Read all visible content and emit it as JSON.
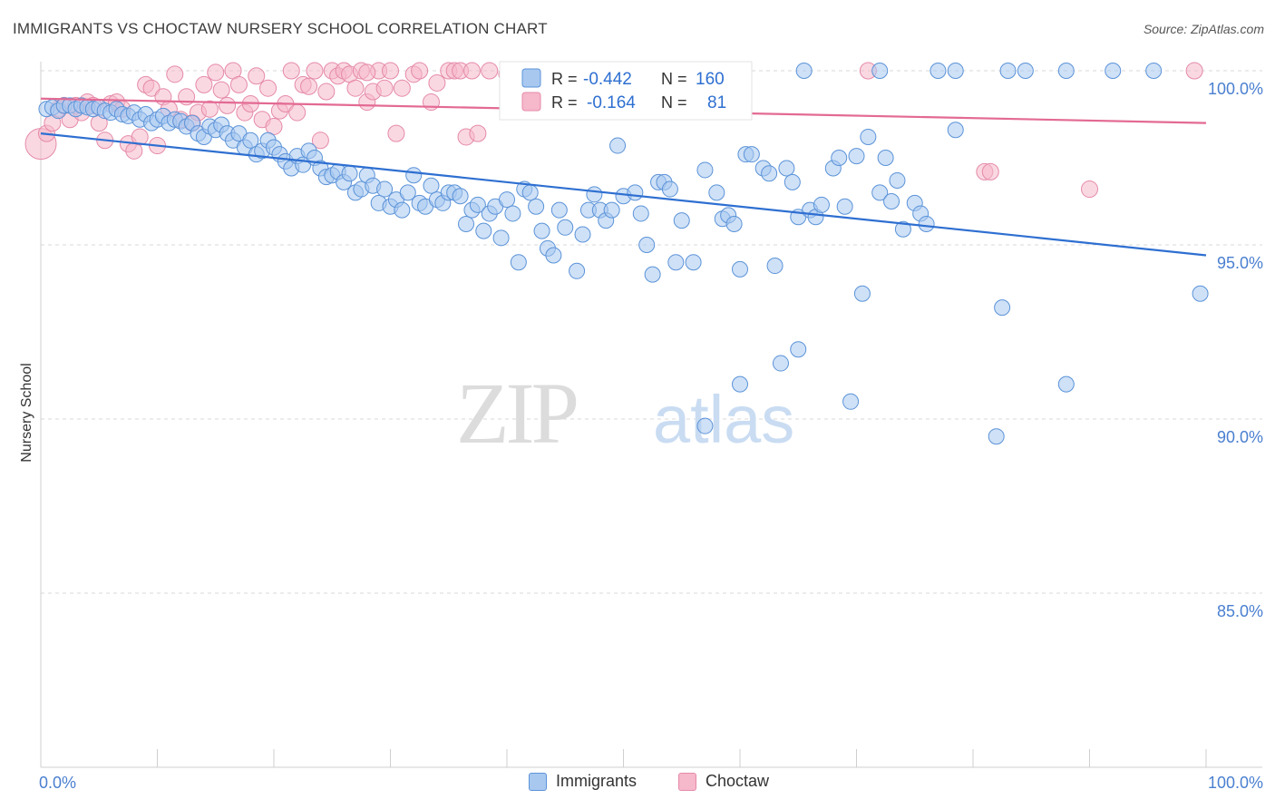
{
  "header": {
    "title": "IMMIGRANTS VS CHOCTAW NURSERY SCHOOL CORRELATION CHART",
    "source": "Source: ZipAtlas.com"
  },
  "watermark": {
    "zip": "ZIP",
    "atlas": "atlas"
  },
  "colors": {
    "blue_fill": "#a8c8f0",
    "blue_stroke": "#5b93d8",
    "blue_line": "#2e6fd1",
    "pink_fill": "#f6b8cb",
    "pink_stroke": "#e58aa8",
    "pink_line": "#e36a93",
    "axis_label": "#4a7fd0",
    "grid": "#d8d8d8"
  },
  "legend": {
    "rows": [
      {
        "r_label": "R =",
        "r_value": "-0.442",
        "n_label": "N =",
        "n_value": "160"
      },
      {
        "r_label": "R =",
        "r_value": "-0.164",
        "n_label": "N =",
        "n_value": "81"
      }
    ]
  },
  "bottom_legend": {
    "immigrants": "Immigrants",
    "choctaw": "Choctaw"
  },
  "chart_data": {
    "type": "scatter",
    "title": "IMMIGRANTS VS CHOCTAW NURSERY SCHOOL CORRELATION CHART",
    "xlabel": "",
    "ylabel": "Nursery School",
    "xlim": [
      0,
      100
    ],
    "ylim": [
      80.5,
      100.8
    ],
    "x_tick_labels": [
      "0.0%",
      "100.0%"
    ],
    "y_ticks": [
      85,
      90,
      95,
      100
    ],
    "y_tick_labels": [
      "85.0%",
      "90.0%",
      "95.0%",
      "100.0%"
    ],
    "series": [
      {
        "name": "Immigrants",
        "r": -0.442,
        "n": 160,
        "trend": {
          "x": [
            0,
            100
          ],
          "y": [
            98.2,
            94.7
          ]
        },
        "points": [
          [
            0.5,
            98.9
          ],
          [
            1,
            98.95
          ],
          [
            1.5,
            98.85
          ],
          [
            2,
            99
          ],
          [
            2.5,
            99
          ],
          [
            3,
            98.9
          ],
          [
            3.5,
            99
          ],
          [
            4,
            98.95
          ],
          [
            4.5,
            98.9
          ],
          [
            5,
            98.95
          ],
          [
            5.5,
            98.85
          ],
          [
            6,
            98.8
          ],
          [
            6.5,
            98.9
          ],
          [
            7,
            98.75
          ],
          [
            7.5,
            98.7
          ],
          [
            8,
            98.8
          ],
          [
            8.5,
            98.6
          ],
          [
            9,
            98.75
          ],
          [
            9.5,
            98.5
          ],
          [
            10,
            98.6
          ],
          [
            10.5,
            98.7
          ],
          [
            11,
            98.5
          ],
          [
            11.5,
            98.6
          ],
          [
            12,
            98.55
          ],
          [
            12.5,
            98.4
          ],
          [
            13,
            98.5
          ],
          [
            13.5,
            98.2
          ],
          [
            14,
            98.1
          ],
          [
            14.5,
            98.4
          ],
          [
            15,
            98.3
          ],
          [
            15.5,
            98.45
          ],
          [
            16,
            98.2
          ],
          [
            16.5,
            98
          ],
          [
            17,
            98.2
          ],
          [
            17.5,
            97.8
          ],
          [
            18,
            98
          ],
          [
            18.5,
            97.6
          ],
          [
            19,
            97.7
          ],
          [
            19.5,
            98
          ],
          [
            20,
            97.8
          ],
          [
            20.5,
            97.6
          ],
          [
            21,
            97.4
          ],
          [
            21.5,
            97.2
          ],
          [
            22,
            97.55
          ],
          [
            22.5,
            97.3
          ],
          [
            23,
            97.7
          ],
          [
            23.5,
            97.5
          ],
          [
            24,
            97.2
          ],
          [
            24.5,
            96.95
          ],
          [
            25,
            97
          ],
          [
            25.5,
            97.1
          ],
          [
            26,
            96.8
          ],
          [
            26.5,
            97.05
          ],
          [
            27,
            96.5
          ],
          [
            27.5,
            96.6
          ],
          [
            28,
            97
          ],
          [
            28.5,
            96.7
          ],
          [
            29,
            96.2
          ],
          [
            29.5,
            96.6
          ],
          [
            30,
            96.1
          ],
          [
            30.5,
            96.3
          ],
          [
            31,
            96
          ],
          [
            31.5,
            96.5
          ],
          [
            32,
            97
          ],
          [
            32.5,
            96.2
          ],
          [
            33,
            96.1
          ],
          [
            33.5,
            96.7
          ],
          [
            34,
            96.3
          ],
          [
            34.5,
            96.2
          ],
          [
            35,
            96.5
          ],
          [
            35.5,
            96.5
          ],
          [
            36,
            96.4
          ],
          [
            36.5,
            95.6
          ],
          [
            37,
            96
          ],
          [
            37.5,
            96.15
          ],
          [
            38,
            95.4
          ],
          [
            38.5,
            95.9
          ],
          [
            39,
            96.1
          ],
          [
            39.5,
            95.2
          ],
          [
            40,
            96.3
          ],
          [
            40.5,
            95.9
          ],
          [
            41,
            94.5
          ],
          [
            41.5,
            96.6
          ],
          [
            42,
            96.5
          ],
          [
            42.5,
            96.1
          ],
          [
            43,
            95.4
          ],
          [
            43.5,
            94.9
          ],
          [
            44,
            94.7
          ],
          [
            44.5,
            96
          ],
          [
            45,
            95.5
          ],
          [
            46,
            94.25
          ],
          [
            46.5,
            95.3
          ],
          [
            47,
            96
          ],
          [
            47.5,
            96.45
          ],
          [
            48,
            96
          ],
          [
            48.5,
            95.7
          ],
          [
            49,
            96
          ],
          [
            49.5,
            97.85
          ],
          [
            50,
            96.4
          ],
          [
            51,
            96.5
          ],
          [
            51.5,
            95.9
          ],
          [
            52,
            95
          ],
          [
            52.5,
            94.15
          ],
          [
            53,
            96.8
          ],
          [
            53.5,
            96.8
          ],
          [
            54,
            96.6
          ],
          [
            54.5,
            94.5
          ],
          [
            55,
            95.7
          ],
          [
            56,
            94.5
          ],
          [
            57,
            97.15
          ],
          [
            58,
            96.5
          ],
          [
            58.5,
            95.75
          ],
          [
            59,
            95.85
          ],
          [
            59.5,
            95.6
          ],
          [
            60,
            94.3
          ],
          [
            60.5,
            97.6
          ],
          [
            61,
            97.6
          ],
          [
            62,
            97.2
          ],
          [
            62.5,
            97.05
          ],
          [
            63,
            94.4
          ],
          [
            64,
            97.2
          ],
          [
            64.5,
            96.8
          ],
          [
            65,
            95.8
          ],
          [
            66,
            96
          ],
          [
            66.5,
            95.8
          ],
          [
            67,
            96.15
          ],
          [
            68,
            97.2
          ],
          [
            68.5,
            97.5
          ],
          [
            69,
            96.1
          ],
          [
            70,
            97.55
          ],
          [
            70.5,
            93.6
          ],
          [
            71,
            98.1
          ],
          [
            72,
            96.5
          ],
          [
            72.5,
            97.5
          ],
          [
            73,
            96.25
          ],
          [
            73.5,
            96.85
          ],
          [
            74,
            95.45
          ],
          [
            75,
            96.2
          ],
          [
            75.5,
            95.9
          ],
          [
            76,
            95.6
          ],
          [
            78.5,
            98.3
          ],
          [
            60,
            91
          ],
          [
            65,
            92
          ],
          [
            69.5,
            90.5
          ],
          [
            57,
            89.8
          ],
          [
            82,
            89.5
          ],
          [
            82.5,
            93.2
          ],
          [
            88,
            91
          ],
          [
            99.5,
            93.6
          ],
          [
            63.5,
            91.6
          ],
          [
            65.5,
            100
          ],
          [
            72,
            100
          ],
          [
            77,
            100
          ],
          [
            78.5,
            100
          ],
          [
            83,
            100
          ],
          [
            84.5,
            100
          ],
          [
            88,
            100
          ],
          [
            92,
            100
          ],
          [
            95.5,
            100
          ],
          [
            60,
            99.1
          ]
        ]
      },
      {
        "name": "Choctaw",
        "r": -0.164,
        "n": 81,
        "trend": {
          "x": [
            0,
            100
          ],
          "y": [
            99.2,
            98.5
          ]
        },
        "points": [
          [
            0,
            97.9
          ],
          [
            0.5,
            98.2
          ],
          [
            1,
            98.5
          ],
          [
            1.5,
            98.9
          ],
          [
            2,
            99
          ],
          [
            2.5,
            98.6
          ],
          [
            3,
            99
          ],
          [
            3.5,
            98.8
          ],
          [
            4,
            99.1
          ],
          [
            4.5,
            99
          ],
          [
            5,
            98.5
          ],
          [
            5.5,
            98
          ],
          [
            6,
            99.05
          ],
          [
            6.5,
            99.1
          ],
          [
            7,
            98.9
          ],
          [
            7.5,
            97.9
          ],
          [
            8,
            97.7
          ],
          [
            8.5,
            98.1
          ],
          [
            9,
            99.6
          ],
          [
            9.5,
            99.5
          ],
          [
            10,
            97.85
          ],
          [
            10.5,
            99.25
          ],
          [
            11,
            98.9
          ],
          [
            11.5,
            99.9
          ],
          [
            12,
            98.6
          ],
          [
            12.5,
            99.25
          ],
          [
            13,
            98.5
          ],
          [
            13.5,
            98.8
          ],
          [
            14,
            99.6
          ],
          [
            14.5,
            98.9
          ],
          [
            15,
            99.95
          ],
          [
            15.5,
            99.45
          ],
          [
            16,
            99
          ],
          [
            16.5,
            100
          ],
          [
            17,
            99.6
          ],
          [
            17.5,
            98.8
          ],
          [
            18,
            99.05
          ],
          [
            18.5,
            99.85
          ],
          [
            19,
            98.6
          ],
          [
            19.5,
            99.5
          ],
          [
            20,
            98.4
          ],
          [
            20.5,
            98.85
          ],
          [
            21,
            99.05
          ],
          [
            21.5,
            100
          ],
          [
            22,
            98.8
          ],
          [
            22.5,
            99.6
          ],
          [
            23,
            99.55
          ],
          [
            23.5,
            100
          ],
          [
            24,
            98
          ],
          [
            24.5,
            99.4
          ],
          [
            25,
            100
          ],
          [
            25.5,
            99.85
          ],
          [
            26,
            100
          ],
          [
            26.5,
            99.9
          ],
          [
            27,
            99.5
          ],
          [
            27.5,
            100
          ],
          [
            28,
            99.1
          ],
          [
            28.5,
            99.4
          ],
          [
            29,
            100
          ],
          [
            29.5,
            99.5
          ],
          [
            30,
            100
          ],
          [
            31,
            99.5
          ],
          [
            32,
            99.9
          ],
          [
            32.5,
            100
          ],
          [
            33.5,
            99.1
          ],
          [
            34,
            99.65
          ],
          [
            35,
            100
          ],
          [
            35.5,
            100
          ],
          [
            36,
            100
          ],
          [
            36.5,
            98.1
          ],
          [
            37,
            100
          ],
          [
            37.5,
            98.2
          ],
          [
            28,
            99.95
          ],
          [
            30.5,
            98.2
          ],
          [
            38.5,
            100
          ],
          [
            40,
            99.9
          ],
          [
            71,
            100
          ],
          [
            81,
            97.1
          ],
          [
            81.5,
            97.1
          ],
          [
            90,
            96.6
          ],
          [
            99,
            100
          ]
        ]
      }
    ]
  }
}
